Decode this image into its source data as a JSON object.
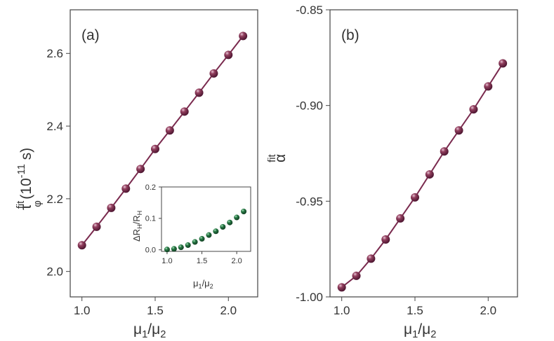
{
  "colors": {
    "marker": "#7a2a4e",
    "marker_highlight": "#d9a3bf",
    "inset_marker": "#1f6b3c",
    "inset_highlight": "#8fd1a5",
    "line": "#7a2a4e",
    "axis": "#444444"
  },
  "chart_data": [
    {
      "type": "line",
      "panel_label": "(a)",
      "xlabel": {
        "base": "μ",
        "sub1": "1",
        "slash": "/μ",
        "sub2": "2"
      },
      "ylabel": {
        "tau": "τ",
        "sub": "φ",
        "sup": "fit",
        "unit_open": "(10",
        "exp": "-11",
        "unit_close": " s)"
      },
      "xlim": [
        0.92,
        2.2
      ],
      "ylim": [
        1.93,
        2.72
      ],
      "xticks": [
        1.0,
        1.5,
        2.0
      ],
      "xtick_labels": [
        "1.0",
        "1.5",
        "2.0"
      ],
      "yticks": [
        2.0,
        2.2,
        2.4,
        2.6
      ],
      "ytick_labels": [
        "2.0",
        "2.2",
        "2.4",
        "2.6"
      ],
      "x": [
        1.0,
        1.1,
        1.2,
        1.3,
        1.4,
        1.5,
        1.6,
        1.7,
        1.8,
        1.9,
        2.0,
        2.1
      ],
      "y": [
        2.072,
        2.123,
        2.175,
        2.228,
        2.282,
        2.337,
        2.388,
        2.44,
        2.492,
        2.545,
        2.596,
        2.648
      ]
    },
    {
      "type": "line",
      "panel_label": "(b)",
      "xlabel": {
        "base": "μ",
        "sub1": "1",
        "slash": "/μ",
        "sub2": "2"
      },
      "ylabel": {
        "alpha": "α",
        "sup": "fit"
      },
      "xlim": [
        0.92,
        2.2
      ],
      "ylim": [
        -1.0,
        -0.85
      ],
      "xticks": [
        1.0,
        1.5,
        2.0
      ],
      "xtick_labels": [
        "1.0",
        "1.5",
        "2.0"
      ],
      "yticks": [
        -1.0,
        -0.95,
        -0.9,
        -0.85
      ],
      "ytick_labels": [
        "-1.00",
        "-0.95",
        "-0.90",
        "-0.85"
      ],
      "x": [
        1.0,
        1.1,
        1.2,
        1.3,
        1.4,
        1.5,
        1.6,
        1.7,
        1.8,
        1.9,
        2.0,
        2.1
      ],
      "y": [
        -0.995,
        -0.989,
        -0.98,
        -0.97,
        -0.959,
        -0.948,
        -0.936,
        -0.924,
        -0.913,
        -0.902,
        -0.89,
        -0.878
      ]
    },
    {
      "type": "scatter",
      "inset_of": "(a)",
      "xlabel": {
        "base": "μ",
        "sub1": "1",
        "slash": "/μ",
        "sub2": "2"
      },
      "ylabel": {
        "delta": "ΔR",
        "sub1": "H",
        "slash": "/R",
        "sub2": "H"
      },
      "xlim": [
        0.92,
        2.2
      ],
      "ylim": [
        -0.005,
        0.2
      ],
      "xticks": [
        1.0,
        1.5,
        2.0
      ],
      "xtick_labels": [
        "1.0",
        "1.5",
        "2.0"
      ],
      "yticks": [
        0.0,
        0.1,
        0.2
      ],
      "ytick_labels": [
        "0.0",
        "0.1",
        "0.2"
      ],
      "x": [
        1.0,
        1.1,
        1.2,
        1.3,
        1.4,
        1.5,
        1.6,
        1.7,
        1.8,
        1.9,
        2.0,
        2.1
      ],
      "y": [
        0.001,
        0.003,
        0.008,
        0.015,
        0.025,
        0.035,
        0.047,
        0.059,
        0.073,
        0.087,
        0.103,
        0.122
      ]
    }
  ]
}
